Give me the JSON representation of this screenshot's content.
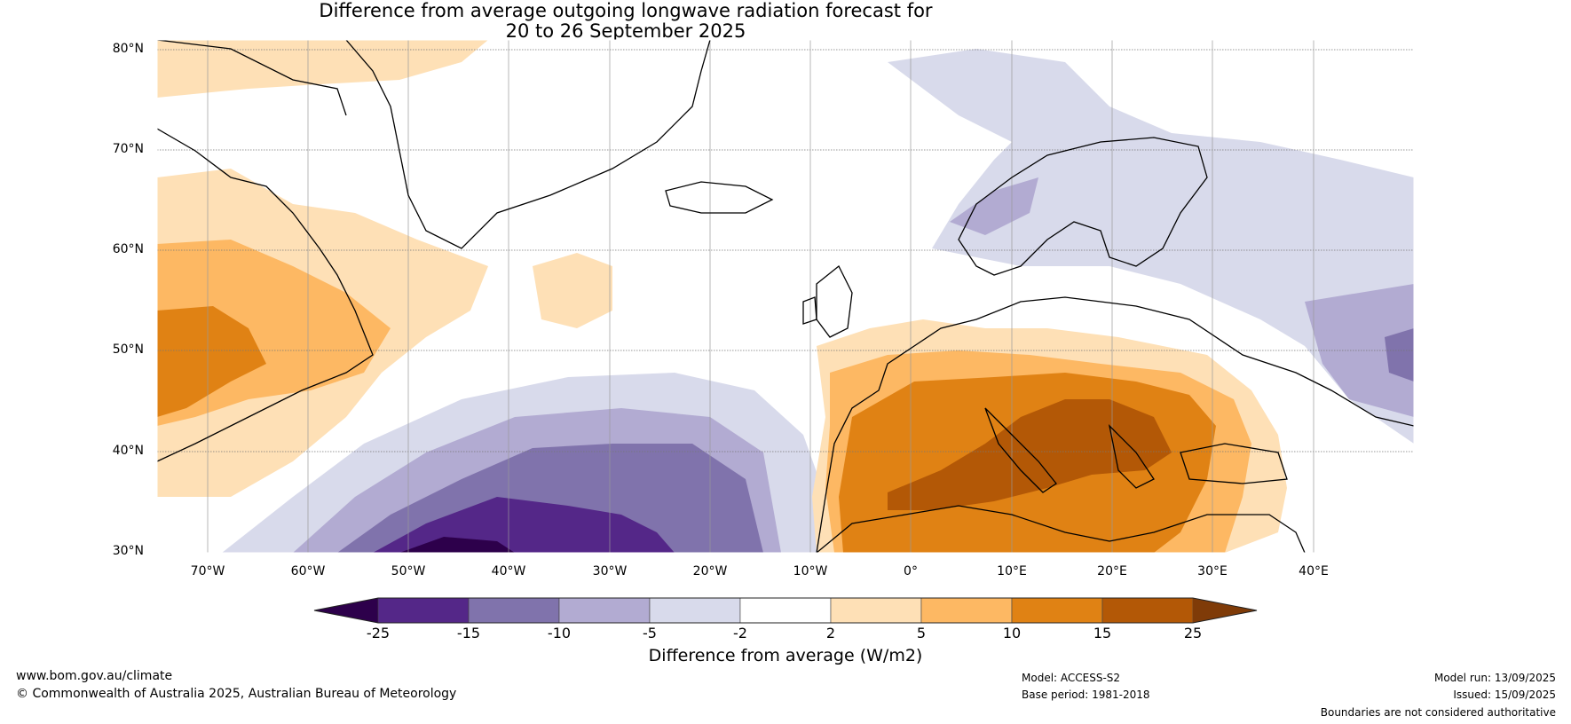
{
  "title": {
    "line1": "Difference from average outgoing longwave radiation forecast for",
    "line2": "20 to 26 September 2025"
  },
  "map": {
    "latitude_labels": [
      "80°N",
      "70°N",
      "60°N",
      "50°N",
      "40°N",
      "30°N"
    ],
    "longitude_labels": [
      "70°W",
      "60°W",
      "50°W",
      "40°W",
      "30°W",
      "20°W",
      "10°W",
      "0°",
      "10°E",
      "20°E",
      "30°E",
      "40°E"
    ],
    "region_extent": {
      "lon_min": -75,
      "lon_max": 50,
      "lat_min": 30,
      "lat_max": 81
    },
    "anomaly_patterns": [
      {
        "region": "Western Mediterranean, Italy, Balkans, Greece",
        "category": "15 to 25",
        "color": "#b35806"
      },
      {
        "region": "Southern and central Europe, North Africa",
        "category": "10 to 15",
        "color": "#e08214"
      },
      {
        "region": "Eastern Canada / Labrador / Newfoundland",
        "category": "10 to 15",
        "color": "#e08214"
      },
      {
        "region": "Central North Atlantic (30–40°N, 50–20°W)",
        "category": "-25 to -15",
        "color": "#542788"
      },
      {
        "region": "Scandinavia, Barents/Norwegian Sea, Western Russia",
        "category": "-5 to -2",
        "color": "#d8daeb"
      }
    ]
  },
  "colorbar": {
    "tick_labels": [
      "-25",
      "-15",
      "-10",
      "-5",
      "-2",
      "2",
      "5",
      "10",
      "15",
      "25"
    ],
    "colors": [
      "#2d004b",
      "#542788",
      "#8073ac",
      "#b2abd2",
      "#d8daeb",
      "#ffffff",
      "#fee0b6",
      "#fdb863",
      "#e08214",
      "#b35806",
      "#7f3b08"
    ],
    "title": "Difference from average (W/m2)"
  },
  "footer": {
    "website": "www.bom.gov.au/climate",
    "copyright": "© Commonwealth of Australia 2025, Australian Bureau of Meteorology",
    "model": "Model: ACCESS-S2",
    "base_period": "Base period: 1981-2018",
    "model_run": "Model run: 13/09/2025",
    "issued": "Issued: 15/09/2025",
    "disclaimer": "Boundaries are not considered authoritative"
  }
}
